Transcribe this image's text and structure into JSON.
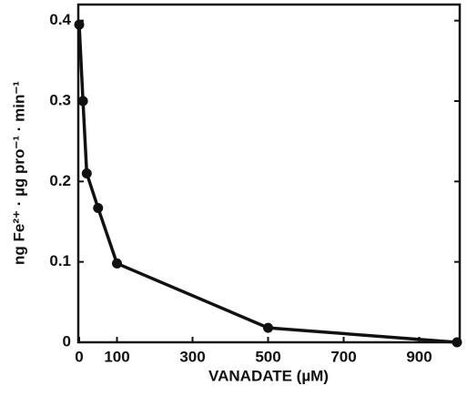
{
  "chart_data": {
    "type": "line",
    "x_label": "VANADATE (µM)",
    "y_label": "ng Fe²⁺ · µg pro⁻¹ · min⁻¹",
    "x": [
      0,
      10,
      20,
      50,
      100,
      500,
      1000
    ],
    "series": [
      {
        "color": "#111111",
        "values": [
          0.395,
          0.3,
          0.21,
          0.167,
          0.098,
          0.018,
          0.0
        ]
      }
    ],
    "xlim": [
      0,
      1000
    ],
    "ylim": [
      0,
      0.42
    ],
    "xticks": [
      0,
      100,
      300,
      500,
      700,
      900
    ],
    "yticks": [
      0,
      0.1,
      0.2,
      0.3,
      0.4
    ],
    "grid": false
  }
}
